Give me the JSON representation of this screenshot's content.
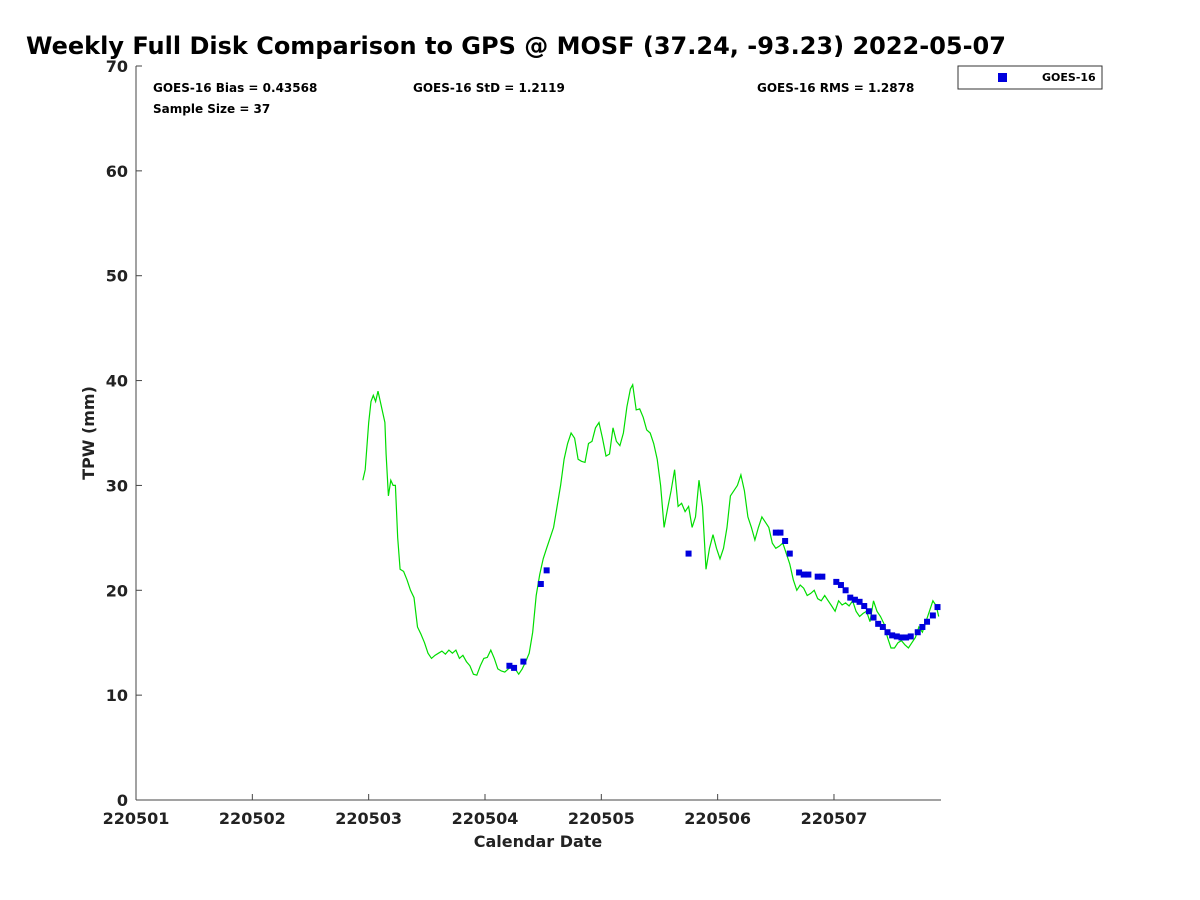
{
  "chart_data": {
    "type": "scatter",
    "title": "Weekly Full Disk Comparison to GPS @ MOSF (37.24, -93.23) 2022-05-07",
    "xlabel": "Calendar Date",
    "ylabel": "TPW (mm)",
    "xlim": [
      0,
      6.92
    ],
    "ylim": [
      0,
      70
    ],
    "x_tick_values": [
      0,
      1,
      2,
      3,
      4,
      5,
      6
    ],
    "x_tick_labels": [
      "220501",
      "220502",
      "220503",
      "220504",
      "220505",
      "220506",
      "220507"
    ],
    "y_ticks": [
      0,
      10,
      20,
      30,
      40,
      50,
      60,
      70
    ],
    "y_tick_labels": [
      "0",
      "10",
      "20",
      "30",
      "40",
      "50",
      "60",
      "70"
    ],
    "stats": {
      "bias": "GOES-16 Bias = 0.43568",
      "std": "GOES-16 StD = 1.2119",
      "rms": "GOES-16 RMS = 1.2878",
      "sample_size": "Sample Size = 37"
    },
    "legend": {
      "position": "top-right",
      "entries": [
        "GOES-16"
      ]
    },
    "series": [
      {
        "name": "GPS",
        "kind": "line",
        "color": "#00dd00",
        "points": [
          [
            1.95,
            30.5
          ],
          [
            1.97,
            31.5
          ],
          [
            2.0,
            36.0
          ],
          [
            2.02,
            38.0
          ],
          [
            2.04,
            38.6
          ],
          [
            2.06,
            38.0
          ],
          [
            2.08,
            39.0
          ],
          [
            2.1,
            38.0
          ],
          [
            2.12,
            37.0
          ],
          [
            2.14,
            36.0
          ],
          [
            2.15,
            33.0
          ],
          [
            2.17,
            29.0
          ],
          [
            2.19,
            30.5
          ],
          [
            2.21,
            30.0
          ],
          [
            2.23,
            30.0
          ],
          [
            2.25,
            25.0
          ],
          [
            2.27,
            22.0
          ],
          [
            2.3,
            21.8
          ],
          [
            2.33,
            21.0
          ],
          [
            2.36,
            20.0
          ],
          [
            2.39,
            19.3
          ],
          [
            2.42,
            16.5
          ],
          [
            2.45,
            15.8
          ],
          [
            2.48,
            15.0
          ],
          [
            2.51,
            14.0
          ],
          [
            2.54,
            13.5
          ],
          [
            2.57,
            13.8
          ],
          [
            2.6,
            14.0
          ],
          [
            2.63,
            14.2
          ],
          [
            2.66,
            13.9
          ],
          [
            2.69,
            14.3
          ],
          [
            2.72,
            14.0
          ],
          [
            2.75,
            14.3
          ],
          [
            2.78,
            13.5
          ],
          [
            2.81,
            13.8
          ],
          [
            2.84,
            13.2
          ],
          [
            2.87,
            12.8
          ],
          [
            2.9,
            12.0
          ],
          [
            2.93,
            11.9
          ],
          [
            2.96,
            12.8
          ],
          [
            2.99,
            13.5
          ],
          [
            3.02,
            13.6
          ],
          [
            3.05,
            14.3
          ],
          [
            3.08,
            13.5
          ],
          [
            3.11,
            12.5
          ],
          [
            3.14,
            12.3
          ],
          [
            3.17,
            12.2
          ],
          [
            3.2,
            12.5
          ],
          [
            3.23,
            12.8
          ],
          [
            3.26,
            12.5
          ],
          [
            3.29,
            12.0
          ],
          [
            3.32,
            12.5
          ],
          [
            3.35,
            13.2
          ],
          [
            3.38,
            14.0
          ],
          [
            3.41,
            16.0
          ],
          [
            3.44,
            19.5
          ],
          [
            3.47,
            21.5
          ],
          [
            3.5,
            23.0
          ],
          [
            3.53,
            24.0
          ],
          [
            3.56,
            25.0
          ],
          [
            3.59,
            26.0
          ],
          [
            3.62,
            28.0
          ],
          [
            3.65,
            30.0
          ],
          [
            3.68,
            32.5
          ],
          [
            3.71,
            34.0
          ],
          [
            3.74,
            35.0
          ],
          [
            3.77,
            34.5
          ],
          [
            3.8,
            32.5
          ],
          [
            3.83,
            32.3
          ],
          [
            3.86,
            32.2
          ],
          [
            3.89,
            34.0
          ],
          [
            3.92,
            34.2
          ],
          [
            3.95,
            35.5
          ],
          [
            3.98,
            36.0
          ],
          [
            4.01,
            34.5
          ],
          [
            4.04,
            32.8
          ],
          [
            4.07,
            33.0
          ],
          [
            4.1,
            35.5
          ],
          [
            4.13,
            34.2
          ],
          [
            4.16,
            33.8
          ],
          [
            4.19,
            35.0
          ],
          [
            4.22,
            37.5
          ],
          [
            4.25,
            39.2
          ],
          [
            4.27,
            39.6
          ],
          [
            4.3,
            37.2
          ],
          [
            4.33,
            37.3
          ],
          [
            4.36,
            36.5
          ],
          [
            4.39,
            35.3
          ],
          [
            4.42,
            35.0
          ],
          [
            4.45,
            34.0
          ],
          [
            4.48,
            32.5
          ],
          [
            4.51,
            30.0
          ],
          [
            4.54,
            26.0
          ],
          [
            4.57,
            27.8
          ],
          [
            4.6,
            29.5
          ],
          [
            4.63,
            31.5
          ],
          [
            4.66,
            28.0
          ],
          [
            4.69,
            28.3
          ],
          [
            4.72,
            27.5
          ],
          [
            4.75,
            28.0
          ],
          [
            4.78,
            26.0
          ],
          [
            4.81,
            27.0
          ],
          [
            4.84,
            30.5
          ],
          [
            4.87,
            28.0
          ],
          [
            4.9,
            22.0
          ],
          [
            4.93,
            24.0
          ],
          [
            4.96,
            25.3
          ],
          [
            4.99,
            24.0
          ],
          [
            5.02,
            23.0
          ],
          [
            5.05,
            24.0
          ],
          [
            5.08,
            26.0
          ],
          [
            5.11,
            29.0
          ],
          [
            5.14,
            29.5
          ],
          [
            5.17,
            30.0
          ],
          [
            5.2,
            31.0
          ],
          [
            5.23,
            29.5
          ],
          [
            5.26,
            27.0
          ],
          [
            5.29,
            26.0
          ],
          [
            5.32,
            24.8
          ],
          [
            5.35,
            26.0
          ],
          [
            5.38,
            27.0
          ],
          [
            5.41,
            26.5
          ],
          [
            5.44,
            26.0
          ],
          [
            5.47,
            24.5
          ],
          [
            5.5,
            24.0
          ],
          [
            5.53,
            24.2
          ],
          [
            5.56,
            24.5
          ],
          [
            5.59,
            23.5
          ],
          [
            5.62,
            22.5
          ],
          [
            5.65,
            21.0
          ],
          [
            5.68,
            20.0
          ],
          [
            5.71,
            20.5
          ],
          [
            5.74,
            20.2
          ],
          [
            5.77,
            19.5
          ],
          [
            5.8,
            19.7
          ],
          [
            5.83,
            20.0
          ],
          [
            5.86,
            19.2
          ],
          [
            5.89,
            19.0
          ],
          [
            5.92,
            19.5
          ],
          [
            5.95,
            19.0
          ],
          [
            5.98,
            18.5
          ],
          [
            6.01,
            18.0
          ],
          [
            6.04,
            19.0
          ],
          [
            6.07,
            18.6
          ],
          [
            6.1,
            18.8
          ],
          [
            6.13,
            18.5
          ],
          [
            6.16,
            19.0
          ],
          [
            6.19,
            18.0
          ],
          [
            6.22,
            17.5
          ],
          [
            6.25,
            17.8
          ],
          [
            6.28,
            18.0
          ],
          [
            6.31,
            17.0
          ],
          [
            6.34,
            19.0
          ],
          [
            6.37,
            18.0
          ],
          [
            6.4,
            17.5
          ],
          [
            6.43,
            16.8
          ],
          [
            6.46,
            15.5
          ],
          [
            6.49,
            14.5
          ],
          [
            6.52,
            14.5
          ],
          [
            6.55,
            15.0
          ],
          [
            6.58,
            15.2
          ],
          [
            6.61,
            14.8
          ],
          [
            6.64,
            14.5
          ],
          [
            6.67,
            15.0
          ],
          [
            6.7,
            15.5
          ],
          [
            6.73,
            16.5
          ],
          [
            6.76,
            16.0
          ],
          [
            6.79,
            17.0
          ],
          [
            6.82,
            18.0
          ],
          [
            6.85,
            19.0
          ],
          [
            6.88,
            18.5
          ],
          [
            6.9,
            17.5
          ]
        ]
      },
      {
        "name": "GOES-16",
        "kind": "scatter",
        "color": "#0000dd",
        "points": [
          [
            3.21,
            12.8
          ],
          [
            3.25,
            12.6
          ],
          [
            3.33,
            13.2
          ],
          [
            3.48,
            20.6
          ],
          [
            3.53,
            21.9
          ],
          [
            4.75,
            23.5
          ],
          [
            5.5,
            25.5
          ],
          [
            5.54,
            25.5
          ],
          [
            5.58,
            24.7
          ],
          [
            5.62,
            23.5
          ],
          [
            5.7,
            21.7
          ],
          [
            5.74,
            21.5
          ],
          [
            5.78,
            21.5
          ],
          [
            5.86,
            21.3
          ],
          [
            5.9,
            21.3
          ],
          [
            6.02,
            20.8
          ],
          [
            6.06,
            20.5
          ],
          [
            6.1,
            20.0
          ],
          [
            6.14,
            19.3
          ],
          [
            6.18,
            19.1
          ],
          [
            6.22,
            18.9
          ],
          [
            6.26,
            18.5
          ],
          [
            6.3,
            18.0
          ],
          [
            6.34,
            17.4
          ],
          [
            6.38,
            16.8
          ],
          [
            6.42,
            16.5
          ],
          [
            6.46,
            16.0
          ],
          [
            6.5,
            15.7
          ],
          [
            6.54,
            15.6
          ],
          [
            6.58,
            15.5
          ],
          [
            6.62,
            15.5
          ],
          [
            6.66,
            15.6
          ],
          [
            6.72,
            16.0
          ],
          [
            6.76,
            16.5
          ],
          [
            6.8,
            17.0
          ],
          [
            6.85,
            17.6
          ],
          [
            6.89,
            18.4
          ]
        ]
      }
    ]
  }
}
